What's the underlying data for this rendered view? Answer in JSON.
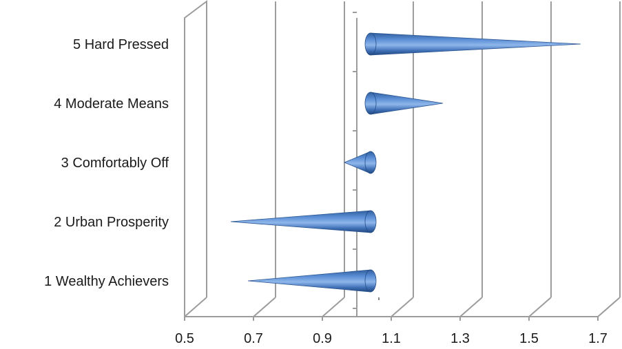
{
  "chart_data": {
    "type": "bar",
    "style": "3d-horizontal-cone",
    "categories": [
      "1  Wealthy Achievers",
      "2  Urban Prosperity",
      "3  Comfortably Off",
      "4  Moderate Means",
      "5  Hard Pressed"
    ],
    "values": [
      0.68,
      0.63,
      0.96,
      1.21,
      1.61
    ],
    "base": 1.0,
    "title": "",
    "xlabel": "",
    "ylabel": "",
    "xlim": [
      0.5,
      1.7
    ],
    "ticks": [
      "0.5",
      "0.7",
      "0.9",
      "1.1",
      "1.3",
      "1.5",
      "1.7"
    ],
    "grid": true,
    "legend": "none",
    "colors": {
      "cone_light": "#7ea9e0",
      "cone_mid": "#4a7ec4",
      "cone_dark": "#2a5590",
      "grid": "#9c9c9c",
      "text": "#1a1a1a"
    }
  }
}
